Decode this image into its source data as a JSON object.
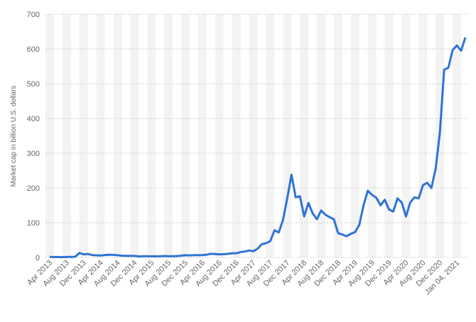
{
  "chart_data": {
    "type": "line",
    "y_label": "Market cap in billion U.S. dollars",
    "categories": [
      "Apr 2013",
      null,
      null,
      null,
      "Aug 2013",
      null,
      null,
      null,
      "Dec 2013",
      null,
      null,
      null,
      "Apr 2014",
      null,
      null,
      null,
      "Aug 2014",
      null,
      null,
      null,
      "Dec 2014",
      null,
      null,
      null,
      "Apr 2015",
      null,
      null,
      null,
      "Aug 2015",
      null,
      null,
      null,
      "Dec 2015",
      null,
      null,
      null,
      "Apr 2016",
      null,
      null,
      null,
      "Aug 2016",
      null,
      null,
      null,
      "Dec 2016",
      null,
      null,
      null,
      "Apr 2017",
      null,
      null,
      null,
      "Aug 2017",
      null,
      null,
      null,
      "Dec 2017",
      null,
      null,
      null,
      "Apr 2018",
      null,
      null,
      null,
      "Aug 2018",
      null,
      null,
      null,
      "Dec 2018",
      null,
      null,
      null,
      "Apr 2019",
      null,
      null,
      null,
      "Aug 2019",
      null,
      null,
      null,
      "Dec 2019",
      null,
      null,
      null,
      "Apr 2020",
      null,
      null,
      null,
      "Aug 2020",
      null,
      null,
      null,
      "Dec 2020",
      null,
      null,
      null,
      "Jan 04, 2021",
      null,
      null
    ],
    "values": [
      1.5,
      1.3,
      1.2,
      1,
      1.2,
      1.5,
      2,
      13,
      9,
      10,
      7,
      6,
      5.5,
      7,
      8,
      7.5,
      6.5,
      5,
      4.5,
      4.5,
      4.5,
      3,
      3.5,
      3.5,
      3.3,
      3.3,
      3.5,
      4,
      3.5,
      3.5,
      4,
      5,
      6.5,
      5.8,
      6.5,
      6.5,
      7,
      8,
      10.5,
      10,
      9,
      9.5,
      10.5,
      12,
      12,
      15.5,
      17,
      20,
      18,
      25,
      38,
      41,
      47,
      78,
      72,
      108,
      170,
      238,
      173,
      176,
      118,
      157,
      127,
      110,
      135,
      123,
      116,
      110,
      70,
      66,
      61,
      68,
      73,
      94,
      150,
      192,
      180,
      172,
      150,
      166,
      138,
      132,
      170,
      158,
      118,
      158,
      173,
      170,
      208,
      215,
      200,
      255,
      360,
      540,
      546,
      597,
      610,
      595,
      633
    ],
    "color": "#2f73d3",
    "ylim": [
      0,
      700
    ],
    "yticks": [
      0,
      100,
      200,
      300,
      400,
      500,
      600,
      700
    ],
    "grid": true
  }
}
